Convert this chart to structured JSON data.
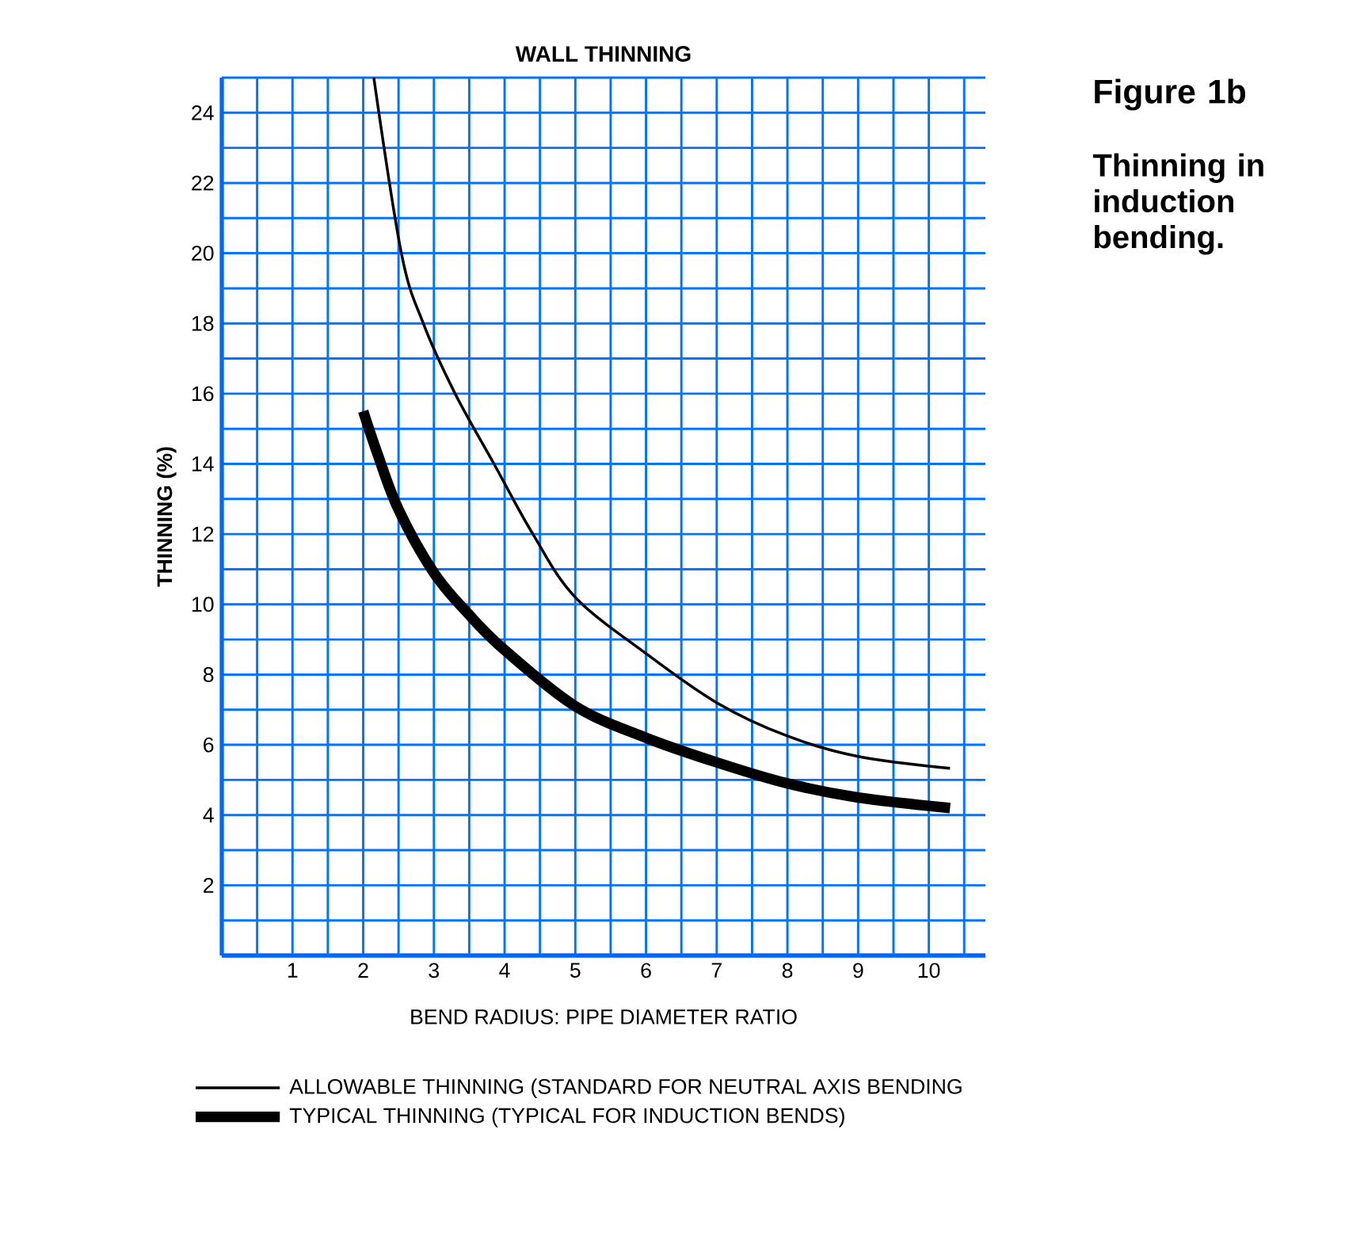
{
  "chart_data": {
    "type": "line",
    "title": "WALL THINNING",
    "xlabel": "BEND RADIUS: PIPE DIAMETER RATIO",
    "ylabel": "THINNING (%)",
    "annotations": [
      "Figure 1b",
      "Thinning in induction bending."
    ],
    "xlim": [
      0,
      10.8
    ],
    "ylim": [
      0,
      25
    ],
    "xticks": [
      {
        "value": 0.5,
        "label": null
      },
      1,
      {
        "value": 1.5,
        "label": null
      },
      2,
      {
        "value": 2.5,
        "label": null
      },
      3,
      {
        "value": 3.5,
        "label": null
      },
      4,
      {
        "value": 4.5,
        "label": null
      },
      5,
      {
        "value": 5.5,
        "label": null
      },
      6,
      {
        "value": 6.5,
        "label": null
      },
      7,
      {
        "value": 7.5,
        "label": null
      },
      8,
      {
        "value": 8.5,
        "label": null
      },
      9,
      {
        "value": 9.5,
        "label": null
      },
      10,
      {
        "value": 10.5,
        "label": null
      }
    ],
    "yticks": [
      {
        "value": 1,
        "label": null
      },
      2,
      {
        "value": 3,
        "label": null
      },
      4,
      {
        "value": 5,
        "label": null
      },
      6,
      {
        "value": 7,
        "label": null
      },
      8,
      {
        "value": 9,
        "label": null
      },
      10,
      {
        "value": 11,
        "label": null
      },
      12,
      {
        "value": 13,
        "label": null
      },
      14,
      {
        "value": 15,
        "label": null
      },
      16,
      {
        "value": 17,
        "label": null
      },
      18,
      {
        "value": 19,
        "label": null
      },
      20,
      {
        "value": 21,
        "label": null
      },
      22,
      {
        "value": 23,
        "label": null
      },
      24,
      {
        "value": 25,
        "label": null
      }
    ],
    "grid": true,
    "legend": "bottom",
    "marker": "none",
    "line_style": "solid",
    "series": [
      {
        "name": "ALLOWABLE THINNING (STANDARD FOR NEUTRAL AXIS BENDING",
        "color": "#000000",
        "x": [
          2.15,
          2.54,
          2.85,
          3.3,
          3.85,
          4.4,
          5.0,
          6.0,
          7.0,
          8.0,
          9.0,
          10.3
        ],
        "values": [
          25,
          20,
          18,
          16,
          14,
          12,
          10.2,
          8.6,
          7.2,
          6.25,
          5.67,
          5.33
        ]
      },
      {
        "name": "TYPICAL THINNING (TYPICAL FOR INDUCTION BENDS)",
        "color": "#000000",
        "x": [
          2.0,
          2.2,
          2.5,
          3.0,
          3.5,
          4.0,
          5.0,
          6.0,
          7.0,
          8.0,
          9.0,
          10.3
        ],
        "values": [
          15.5,
          14.3,
          12.7,
          10.9,
          9.7,
          8.7,
          7.1,
          6.2,
          5.5,
          4.9,
          4.5,
          4.2
        ]
      }
    ]
  }
}
